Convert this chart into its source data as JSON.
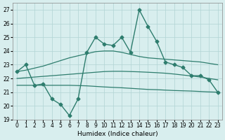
{
  "x": [
    0,
    1,
    2,
    3,
    4,
    5,
    6,
    7,
    8,
    9,
    10,
    11,
    12,
    13,
    14,
    15,
    16,
    17,
    18,
    19,
    20,
    21,
    22,
    23
  ],
  "main_line": [
    22.5,
    23.0,
    21.5,
    21.6,
    20.5,
    20.1,
    19.3,
    20.5,
    23.9,
    25.0,
    24.5,
    24.4,
    25.0,
    23.9,
    27.0,
    25.8,
    24.7,
    23.2,
    23.0,
    22.8,
    22.2,
    22.2,
    21.9,
    21.0
  ],
  "trend_upper": [
    22.5,
    22.6,
    22.75,
    22.9,
    23.1,
    23.3,
    23.5,
    23.65,
    23.8,
    23.95,
    24.0,
    24.0,
    23.9,
    23.75,
    23.6,
    23.5,
    23.45,
    23.4,
    23.35,
    23.3,
    23.25,
    23.2,
    23.1,
    23.0
  ],
  "trend_mid": [
    22.0,
    22.05,
    22.1,
    22.15,
    22.2,
    22.25,
    22.3,
    22.35,
    22.4,
    22.45,
    22.5,
    22.52,
    22.52,
    22.5,
    22.48,
    22.45,
    22.42,
    22.38,
    22.32,
    22.25,
    22.18,
    22.1,
    22.0,
    21.9
  ],
  "trend_lower": [
    21.5,
    21.5,
    21.5,
    21.5,
    21.5,
    21.5,
    21.5,
    21.48,
    21.46,
    21.42,
    21.38,
    21.35,
    21.32,
    21.28,
    21.24,
    21.2,
    21.18,
    21.15,
    21.12,
    21.1,
    21.08,
    21.05,
    21.02,
    21.0
  ],
  "color": "#2e7d6e",
  "bg_color": "#d8eeee",
  "grid_color": "#b0d4d4",
  "xlabel": "Humidex (Indice chaleur)",
  "ylim": [
    19,
    27.5
  ],
  "xlim": [
    -0.5,
    23.5
  ],
  "yticks": [
    19,
    20,
    21,
    22,
    23,
    24,
    25,
    26,
    27
  ],
  "xticks": [
    0,
    1,
    2,
    3,
    4,
    5,
    6,
    7,
    8,
    9,
    10,
    11,
    12,
    13,
    14,
    15,
    16,
    17,
    18,
    19,
    20,
    21,
    22,
    23
  ]
}
